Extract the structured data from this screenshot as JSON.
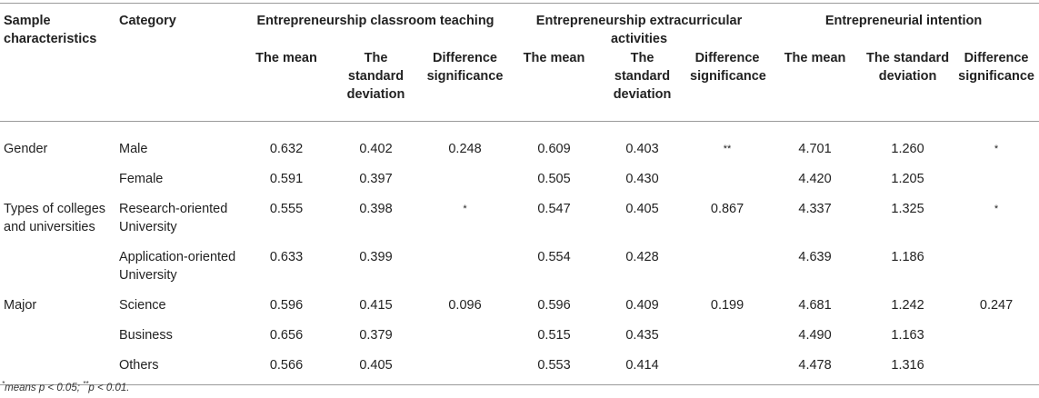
{
  "headers": {
    "sample": "Sample characteristics",
    "category": "Category",
    "group1": "Entrepreneurship classroom teaching",
    "group2": "Entrepreneurship extracurricular activities",
    "group3": "Entrepreneurial intention",
    "mean": "The mean",
    "sd": "The standard deviation",
    "diff": "Difference significance"
  },
  "rows": [
    {
      "sample": "Gender",
      "category": "Male",
      "c1": "0.632",
      "c2": "0.402",
      "c3": "0.248",
      "c4": "0.609",
      "c5": "0.403",
      "c6": "**",
      "c7": "4.701",
      "c8": "1.260",
      "c9": "*"
    },
    {
      "sample": "",
      "category": "Female",
      "c1": "0.591",
      "c2": "0.397",
      "c3": "",
      "c4": "0.505",
      "c5": "0.430",
      "c6": "",
      "c7": "4.420",
      "c8": "1.205",
      "c9": ""
    },
    {
      "sample": "Types of colleges and universities",
      "category": "Research-oriented University",
      "c1": "0.555",
      "c2": "0.398",
      "c3": "*",
      "c4": "0.547",
      "c5": "0.405",
      "c6": "0.867",
      "c7": "4.337",
      "c8": "1.325",
      "c9": "*"
    },
    {
      "sample": "",
      "category": "Application-oriented University",
      "c1": "0.633",
      "c2": "0.399",
      "c3": "",
      "c4": "0.554",
      "c5": "0.428",
      "c6": "",
      "c7": "4.639",
      "c8": "1.186",
      "c9": ""
    },
    {
      "sample": "Major",
      "category": "Science",
      "c1": "0.596",
      "c2": "0.415",
      "c3": "0.096",
      "c4": "0.596",
      "c5": "0.409",
      "c6": "0.199",
      "c7": "4.681",
      "c8": "1.242",
      "c9": "0.247"
    },
    {
      "sample": "",
      "category": "Business",
      "c1": "0.656",
      "c2": "0.379",
      "c3": "",
      "c4": "0.515",
      "c5": "0.435",
      "c6": "",
      "c7": "4.490",
      "c8": "1.163",
      "c9": ""
    },
    {
      "sample": "",
      "category": "Others",
      "c1": "0.566",
      "c2": "0.405",
      "c3": "",
      "c4": "0.553",
      "c5": "0.414",
      "c6": "",
      "c7": "4.478",
      "c8": "1.316",
      "c9": ""
    }
  ],
  "footnote": {
    "mark1": "*",
    "text1": "means p < 0.05; ",
    "mark2": "**",
    "text2": "p < 0.01."
  }
}
